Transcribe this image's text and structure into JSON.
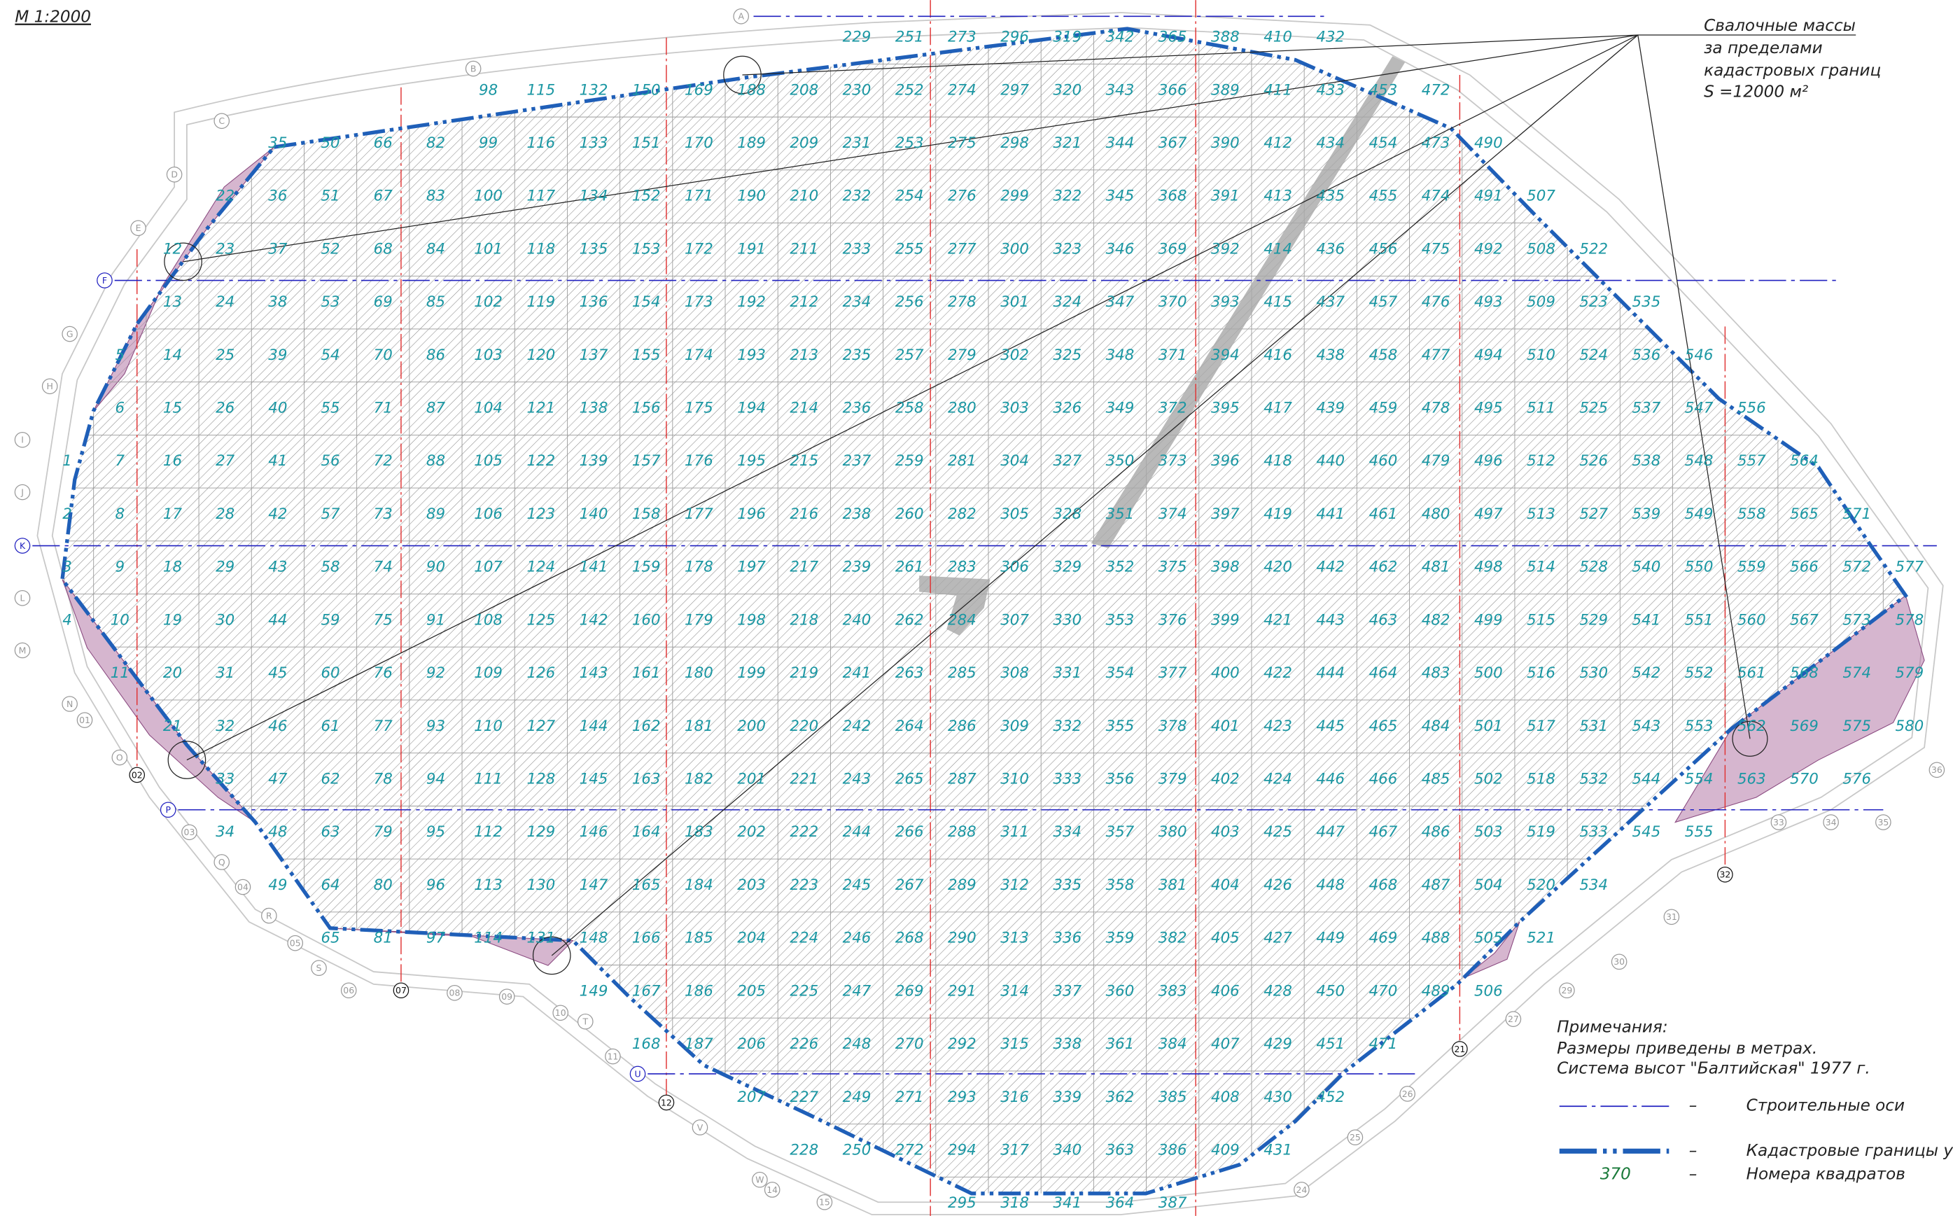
{
  "scale_label": "М 1:2000",
  "callout": {
    "lines": [
      "Свалочные массы",
      "за пределами",
      "кадастровых границ",
      "S =12000 м²"
    ]
  },
  "notes": {
    "title": "Примечания:",
    "lines": [
      "Размеры приведены в метрах.",
      "Система высот \"Балтийская\" 1977 г."
    ]
  },
  "legend": [
    {
      "dash": "–",
      "label": "Строительные оси"
    },
    {
      "dash": "–",
      "label": "Кадастровые границы уч"
    },
    {
      "sample": "370",
      "dash": "–",
      "label": "Номера квадратов"
    }
  ],
  "axes": {
    "letters": [
      "A",
      "B",
      "C",
      "D",
      "E",
      "F",
      "G",
      "H",
      "I",
      "J",
      "K",
      "L",
      "M",
      "N",
      "O",
      "P",
      "Q",
      "R",
      "S",
      "T",
      "U",
      "V",
      "W"
    ],
    "numbers": [
      "01",
      "02",
      "03",
      "04",
      "05",
      "06",
      "07",
      "08",
      "09",
      "10",
      "11",
      "12",
      "14",
      "15",
      "21",
      "24",
      "25",
      "26",
      "27",
      "29",
      "30",
      "31",
      "32",
      "33",
      "34",
      "35",
      "36"
    ]
  },
  "squares": {
    "columns": [
      [
        null,
        null,
        null,
        null,
        null,
        null,
        null,
        null,
        1,
        2,
        3,
        4
      ],
      [
        null,
        null,
        null,
        null,
        null,
        null,
        5,
        6,
        7,
        8,
        9,
        10,
        11
      ],
      [
        null,
        null,
        null,
        null,
        12,
        13,
        14,
        15,
        16,
        17,
        18,
        19,
        20,
        21
      ],
      [
        null,
        null,
        null,
        22,
        23,
        24,
        25,
        26,
        27,
        28,
        29,
        30,
        31,
        32,
        33,
        34
      ],
      [
        null,
        null,
        35,
        36,
        37,
        38,
        39,
        40,
        41,
        42,
        43,
        44,
        45,
        46,
        47,
        48,
        49
      ],
      [
        null,
        null,
        50,
        51,
        52,
        53,
        54,
        55,
        56,
        57,
        58,
        59,
        60,
        61,
        62,
        63,
        64,
        65
      ],
      [
        null,
        null,
        66,
        67,
        68,
        69,
        70,
        71,
        72,
        73,
        74,
        75,
        76,
        77,
        78,
        79,
        80,
        81
      ],
      [
        null,
        null,
        82,
        83,
        84,
        85,
        86,
        87,
        88,
        89,
        90,
        91,
        92,
        93,
        94,
        95,
        96,
        97
      ],
      [
        null,
        98,
        99,
        100,
        101,
        102,
        103,
        104,
        105,
        106,
        107,
        108,
        109,
        110,
        111,
        112,
        113,
        114
      ],
      [
        null,
        115,
        116,
        117,
        118,
        119,
        120,
        121,
        122,
        123,
        124,
        125,
        126,
        127,
        128,
        129,
        130,
        131
      ],
      [
        null,
        132,
        133,
        134,
        135,
        136,
        137,
        138,
        139,
        140,
        141,
        142,
        143,
        144,
        145,
        146,
        147,
        148,
        149
      ],
      [
        null,
        150,
        151,
        152,
        153,
        154,
        155,
        156,
        157,
        158,
        159,
        160,
        161,
        162,
        163,
        164,
        165,
        166,
        167,
        168
      ],
      [
        null,
        169,
        170,
        171,
        172,
        173,
        174,
        175,
        176,
        177,
        178,
        179,
        180,
        181,
        182,
        183,
        184,
        185,
        186,
        187
      ],
      [
        null,
        188,
        189,
        190,
        191,
        192,
        193,
        194,
        195,
        196,
        197,
        198,
        199,
        200,
        201,
        202,
        203,
        204,
        205,
        206,
        207
      ],
      [
        null,
        208,
        209,
        210,
        211,
        212,
        213,
        214,
        215,
        216,
        217,
        218,
        219,
        220,
        221,
        222,
        223,
        224,
        225,
        226,
        227,
        228
      ],
      [
        229,
        230,
        231,
        232,
        233,
        234,
        235,
        236,
        237,
        238,
        239,
        240,
        241,
        242,
        243,
        244,
        245,
        246,
        247,
        248,
        249,
        250
      ],
      [
        251,
        252,
        253,
        254,
        255,
        256,
        257,
        258,
        259,
        260,
        261,
        262,
        263,
        264,
        265,
        266,
        267,
        268,
        269,
        270,
        271,
        272
      ],
      [
        273,
        274,
        275,
        276,
        277,
        278,
        279,
        280,
        281,
        282,
        283,
        284,
        285,
        286,
        287,
        288,
        289,
        290,
        291,
        292,
        293,
        294,
        295
      ],
      [
        296,
        297,
        298,
        299,
        300,
        301,
        302,
        303,
        304,
        305,
        306,
        307,
        308,
        309,
        310,
        311,
        312,
        313,
        314,
        315,
        316,
        317,
        318
      ],
      [
        319,
        320,
        321,
        322,
        323,
        324,
        325,
        326,
        327,
        328,
        329,
        330,
        331,
        332,
        333,
        334,
        335,
        336,
        337,
        338,
        339,
        340,
        341
      ],
      [
        342,
        343,
        344,
        345,
        346,
        347,
        348,
        349,
        350,
        351,
        352,
        353,
        354,
        355,
        356,
        357,
        358,
        359,
        360,
        361,
        362,
        363,
        364
      ],
      [
        365,
        366,
        367,
        368,
        369,
        370,
        371,
        372,
        373,
        374,
        375,
        376,
        377,
        378,
        379,
        380,
        381,
        382,
        383,
        384,
        385,
        386,
        387
      ],
      [
        388,
        389,
        390,
        391,
        392,
        393,
        394,
        395,
        396,
        397,
        398,
        399,
        400,
        401,
        402,
        403,
        404,
        405,
        406,
        407,
        408,
        409
      ],
      [
        410,
        411,
        412,
        413,
        414,
        415,
        416,
        417,
        418,
        419,
        420,
        421,
        422,
        423,
        424,
        425,
        426,
        427,
        428,
        429,
        430,
        431
      ],
      [
        432,
        433,
        434,
        435,
        436,
        437,
        438,
        439,
        440,
        441,
        442,
        443,
        444,
        445,
        446,
        447,
        448,
        449,
        450,
        451,
        452
      ],
      [
        null,
        453,
        454,
        455,
        456,
        457,
        458,
        459,
        460,
        461,
        462,
        463,
        464,
        465,
        466,
        467,
        468,
        469,
        470,
        471
      ],
      [
        null,
        472,
        473,
        474,
        475,
        476,
        477,
        478,
        479,
        480,
        481,
        482,
        483,
        484,
        485,
        486,
        487,
        488,
        489
      ],
      [
        null,
        null,
        490,
        491,
        492,
        493,
        494,
        495,
        496,
        497,
        498,
        499,
        500,
        501,
        502,
        503,
        504,
        505,
        506
      ],
      [
        null,
        null,
        null,
        507,
        508,
        509,
        510,
        511,
        512,
        513,
        514,
        515,
        516,
        517,
        518,
        519,
        520,
        521
      ],
      [
        null,
        null,
        null,
        null,
        522,
        523,
        524,
        525,
        526,
        527,
        528,
        529,
        530,
        531,
        532,
        533,
        534
      ],
      [
        null,
        null,
        null,
        null,
        null,
        535,
        536,
        537,
        538,
        539,
        540,
        541,
        542,
        543,
        544,
        545
      ],
      [
        null,
        null,
        null,
        null,
        null,
        null,
        546,
        547,
        548,
        549,
        550,
        551,
        552,
        553,
        554,
        555
      ],
      [
        null,
        null,
        null,
        null,
        null,
        null,
        null,
        556,
        557,
        558,
        559,
        560,
        561,
        562,
        563
      ],
      [
        null,
        null,
        null,
        null,
        null,
        null,
        null,
        null,
        564,
        565,
        566,
        567,
        568,
        569,
        570
      ],
      [
        null,
        null,
        null,
        null,
        null,
        null,
        null,
        null,
        null,
        571,
        572,
        573,
        574,
        575,
        576
      ],
      [
        null,
        null,
        null,
        null,
        null,
        null,
        null,
        null,
        null,
        null,
        577,
        578,
        579,
        580
      ]
    ]
  }
}
